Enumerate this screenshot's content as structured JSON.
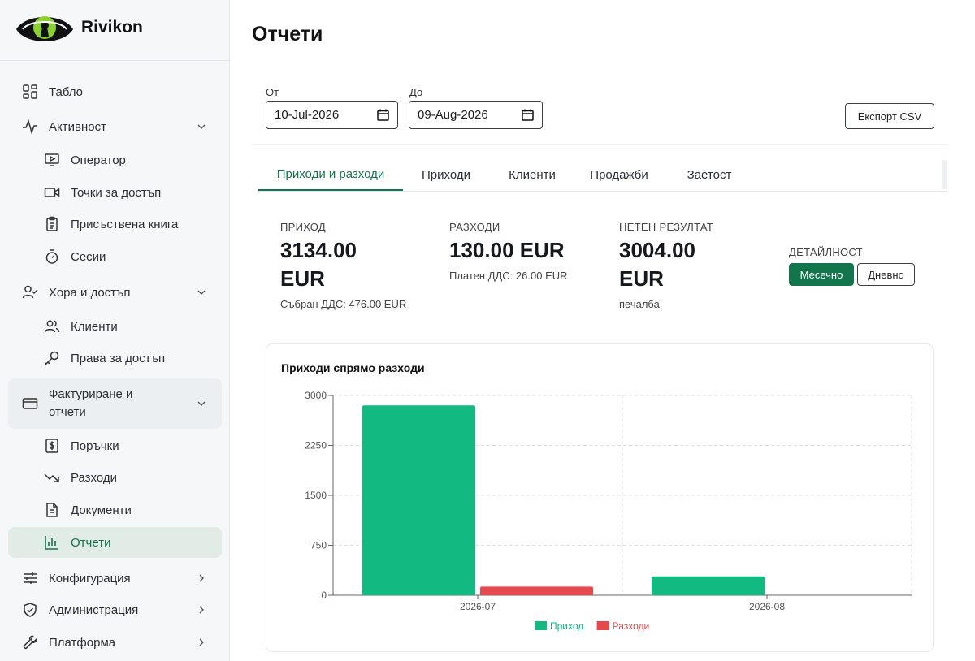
{
  "brand": {
    "name": "Rivikon"
  },
  "sidebar": {
    "items": [
      {
        "label": "Табло",
        "icon": "dashboard-icon"
      },
      {
        "label": "Активност",
        "icon": "activity-icon",
        "expanded": true
      },
      {
        "label": "Оператор",
        "icon": "monitor-icon"
      },
      {
        "label": "Точки за достъп",
        "icon": "camera-icon"
      },
      {
        "label": "Присъствена книга",
        "icon": "clipboard-icon"
      },
      {
        "label": "Сесии",
        "icon": "timer-icon"
      },
      {
        "label": "Хора и достъп",
        "icon": "user-check-icon",
        "expanded": true
      },
      {
        "label": "Клиенти",
        "icon": "users-icon"
      },
      {
        "label": "Права за достъп",
        "icon": "key-icon"
      },
      {
        "label": "Фактуриране и отчети",
        "icon": "credit-card-icon",
        "expanded": true
      },
      {
        "label": "Поръчки",
        "icon": "dollar-receipt-icon"
      },
      {
        "label": "Разходи",
        "icon": "trending-down-icon"
      },
      {
        "label": "Документи",
        "icon": "document-icon"
      },
      {
        "label": "Отчети",
        "icon": "bar-chart-icon",
        "active": true
      },
      {
        "label": "Конфигурация",
        "icon": "sliders-icon"
      },
      {
        "label": "Администрация",
        "icon": "shield-icon"
      },
      {
        "label": "Платформа",
        "icon": "wrench-icon"
      }
    ]
  },
  "page": {
    "title": "Отчети"
  },
  "filters": {
    "from_label": "От",
    "from_value": "10-Jul-2026",
    "to_label": "До",
    "to_value": "09-Aug-2026",
    "export_label": "Експорт CSV"
  },
  "tabs": [
    {
      "label": "Приходи и разходи",
      "active": true
    },
    {
      "label": "Приходи"
    },
    {
      "label": "Клиенти"
    },
    {
      "label": "Продажби"
    },
    {
      "label": "Заетост"
    }
  ],
  "stats": {
    "income": {
      "caption": "ПРИХОД",
      "value_line1": "3134.00",
      "value_line2": "EUR",
      "sub": "Събран ДДС: 476.00 EUR"
    },
    "expenses": {
      "caption": "РАЗХОДИ",
      "value": "130.00 EUR",
      "sub": "Платен ДДС: 26.00 EUR"
    },
    "net": {
      "caption": "НЕТЕН РЕЗУЛТАТ",
      "value_line1": "3004.00",
      "value_line2": "EUR",
      "sub": "печалба"
    }
  },
  "detail": {
    "caption": "ДЕТАЙЛНОСТ",
    "options": [
      "Месечно",
      "Дневно"
    ],
    "selected": "Месечно"
  },
  "colors": {
    "accent": "#12754c",
    "income": "#12b981",
    "expenses": "#e5484d"
  },
  "chart_data": {
    "type": "bar",
    "title": "Приходи спрямо разходи",
    "categories": [
      "2026-07",
      "2026-08"
    ],
    "series": [
      {
        "name": "Приход",
        "values": [
          2850,
          284
        ],
        "color": "#12b981"
      },
      {
        "name": "Разходи",
        "values": [
          130,
          0
        ],
        "color": "#e5484d"
      }
    ],
    "ylim": [
      0,
      3000
    ],
    "yticks": [
      "0",
      "750",
      "1500",
      "2250",
      "3000"
    ],
    "grid": true,
    "legend": "bottom-center"
  }
}
